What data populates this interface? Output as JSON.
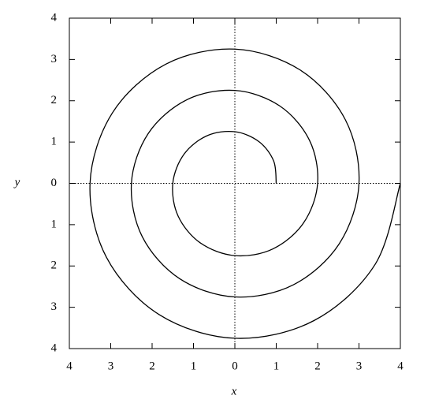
{
  "chart_data": {
    "type": "line",
    "xlabel": "x",
    "ylabel": "y",
    "x": [
      1,
      0.938,
      0.583,
      0,
      -0.667,
      -1.227,
      -1.5,
      -1.371,
      -0.833,
      0,
      0.917,
      1.66,
      2,
      1.804,
      1.083,
      0,
      -1.167,
      -2.093,
      -2.5,
      -2.237,
      -1.333,
      0,
      1.417,
      2.526,
      3,
      2.67,
      1.583,
      0,
      -1.667,
      -2.959,
      -3.5,
      -3.103,
      -1.833,
      0,
      1.917,
      3.392,
      4
    ],
    "series": [
      {
        "color": "#000000",
        "values": [
          0,
          0.542,
          1.01,
          1.25,
          1.155,
          0.708,
          0,
          -0.792,
          -1.443,
          -1.75,
          -1.588,
          -0.958,
          0,
          1.042,
          1.876,
          2.25,
          2.021,
          1.208,
          0,
          -1.292,
          -2.309,
          -2.75,
          -2.454,
          -1.458,
          0,
          1.542,
          2.742,
          3.25,
          2.887,
          1.708,
          0,
          -1.792,
          -3.175,
          -3.75,
          -3.32,
          -1.958,
          0
        ]
      }
    ],
    "xlim": [
      -4,
      4
    ],
    "ylim": [
      -4,
      4
    ],
    "xticks": [
      {
        "value": -4,
        "label": "4"
      },
      {
        "value": -3,
        "label": "3"
      },
      {
        "value": -2,
        "label": "2"
      },
      {
        "value": -1,
        "label": "1"
      },
      0,
      1,
      2,
      3,
      4
    ],
    "yticks": [
      {
        "value": -4,
        "label": "4"
      },
      {
        "value": -3,
        "label": "3"
      },
      {
        "value": -2,
        "label": "2"
      },
      {
        "value": -1,
        "label": "1"
      },
      0,
      1,
      2,
      3,
      4
    ],
    "zero_axis": true,
    "grid": false
  }
}
